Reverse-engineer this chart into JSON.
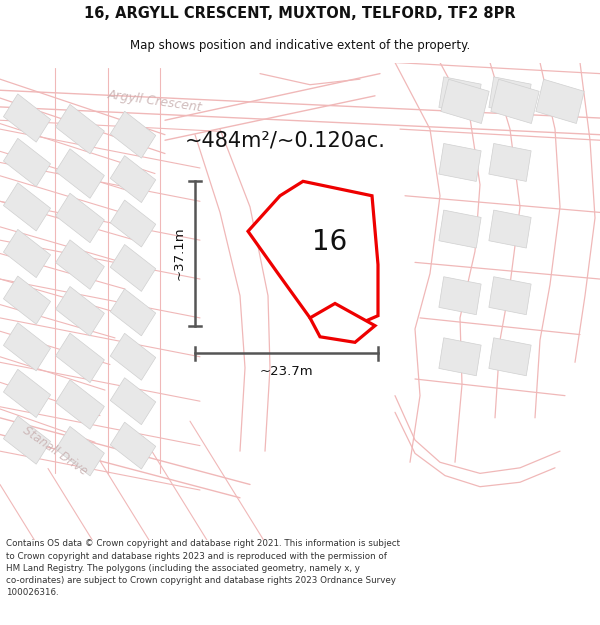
{
  "title": "16, ARGYLL CRESCENT, MUXTON, TELFORD, TF2 8PR",
  "subtitle": "Map shows position and indicative extent of the property.",
  "area_label": "~484m²/~0.120ac.",
  "number_label": "16",
  "dim_h_label": "~23.7m",
  "dim_v_label": "~37.1m",
  "road_label_1": "Argyll Crescent",
  "road_label_2": "Stanall Drive",
  "copyright_text": "Contains OS data © Crown copyright and database right 2021. This information is subject\nto Crown copyright and database rights 2023 and is reproduced with the permission of\nHM Land Registry. The polygons (including the associated geometry, namely x, y\nco-ordinates) are subject to Crown copyright and database rights 2023 Ordnance Survey\n100026316.",
  "map_bg": "#f5f3f3",
  "road_color": "#f0b8b8",
  "block_fill": "#e8e8e8",
  "block_edge": "#d0d0d0",
  "road_label_color": "#c8b0b0",
  "red_color": "#ee0000",
  "dim_color": "#555555",
  "title_color": "#111111"
}
